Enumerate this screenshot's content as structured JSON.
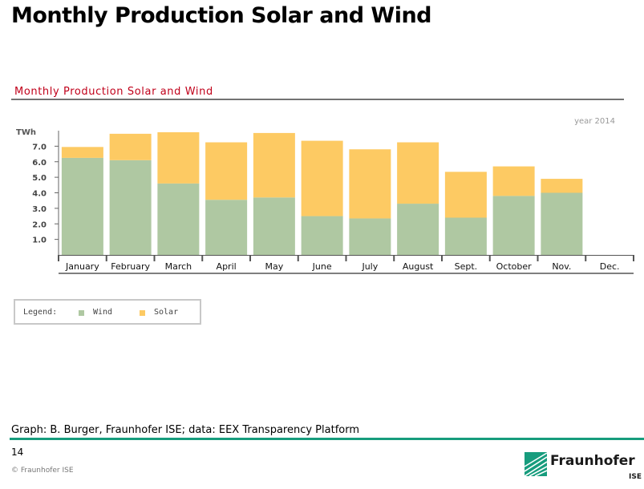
{
  "slide": {
    "title": "Monthly Production Solar and Wind",
    "source": "Graph: B. Burger, Fraunhofer ISE; data: EEX Transparency Platform",
    "page_number": "14",
    "copyright": "© Fraunhofer ISE"
  },
  "logo": {
    "word": "Fraunhofer",
    "sub": "ISE"
  },
  "colors": {
    "wind": "#afc8a2",
    "solar": "#fdca63",
    "title_red": "#c0001a",
    "fraunhofer_green": "#179c7d"
  },
  "legend": {
    "label": "Legend:",
    "wind": "Wind",
    "solar": "Solar"
  },
  "chart_data": {
    "type": "bar",
    "stacked": true,
    "title": "Monthly Production Solar and Wind",
    "note": "year 2014",
    "ylabel": "TWh",
    "ylim": [
      0,
      8
    ],
    "yticks": [
      "1.0",
      "2.0",
      "3.0",
      "4.0",
      "5.0",
      "6.0",
      "7.0"
    ],
    "categories": [
      "January",
      "February",
      "March",
      "April",
      "May",
      "June",
      "July",
      "August",
      "Sept.",
      "October",
      "Nov.",
      "Dec."
    ],
    "series": [
      {
        "name": "Wind",
        "values": [
          6.25,
          6.1,
          4.6,
          3.55,
          3.7,
          2.5,
          2.35,
          3.3,
          2.4,
          3.8,
          4.0,
          null
        ]
      },
      {
        "name": "Solar",
        "values": [
          0.7,
          1.7,
          3.3,
          3.7,
          4.15,
          4.85,
          4.45,
          3.95,
          2.95,
          1.9,
          0.9,
          null
        ]
      }
    ],
    "legend_position": "bottom-left",
    "grid": false
  }
}
